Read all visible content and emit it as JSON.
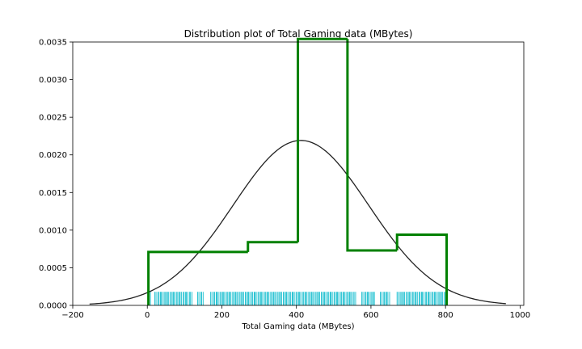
{
  "chart_data": {
    "type": "histogram",
    "title": "Distribution plot of Total Gaming data (MBytes)",
    "xlabel": "Total Gaming data (MBytes)",
    "ylabel": "",
    "xlim": [
      -200,
      1010
    ],
    "ylim": [
      0,
      0.0035
    ],
    "xticks": [
      -200,
      0,
      200,
      400,
      600,
      800,
      1000
    ],
    "xtick_labels": [
      "−200",
      "0",
      "200",
      "400",
      "600",
      "800",
      "1000"
    ],
    "yticks": [
      0,
      0.0005,
      0.001,
      0.0015,
      0.002,
      0.0025,
      0.003,
      0.0035
    ],
    "ytick_labels": [
      "0.0000",
      "0.0005",
      "0.0010",
      "0.0015",
      "0.0020",
      "0.0025",
      "0.0030",
      "0.0035"
    ],
    "grid": false,
    "legend": "none",
    "histogram": {
      "style": "step",
      "color": "#008000",
      "bin_edges": [
        3,
        270,
        404,
        537,
        670,
        803
      ],
      "densities": [
        0.00071,
        0.00084,
        0.00354,
        0.00073,
        0.00094
      ]
    },
    "normal_fit": {
      "color": "#222222",
      "mean": 412,
      "std": 182,
      "x_range": [
        -155,
        962
      ]
    },
    "rug": {
      "color": "#17becf",
      "height": 0.00018,
      "segments": [
        [
          5,
          10
        ],
        [
          20,
          120
        ],
        [
          135,
          150
        ],
        [
          170,
          560
        ],
        [
          575,
          610
        ],
        [
          625,
          650
        ],
        [
          670,
          802
        ]
      ]
    }
  }
}
